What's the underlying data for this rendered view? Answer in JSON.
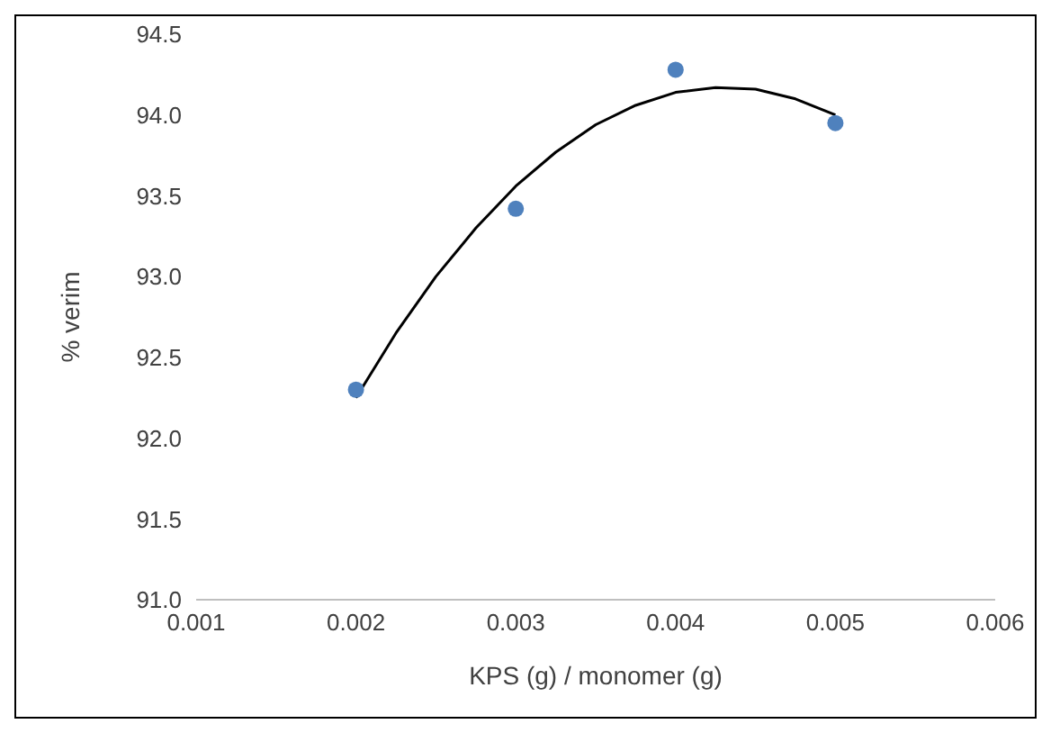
{
  "chart_data": {
    "type": "scatter",
    "xlabel": "KPS (g) / monomer  (g)",
    "ylabel": "% verim",
    "xlim": [
      0.001,
      0.006
    ],
    "xticks": [
      0.001,
      0.002,
      0.003,
      0.004,
      0.005,
      0.006
    ],
    "ylim": [
      91,
      94.5
    ],
    "yticks": [
      {
        "value": 91,
        "label": "91.0"
      },
      {
        "value": 91.5,
        "label": "91.5"
      },
      {
        "value": 92,
        "label": "92.0"
      },
      {
        "value": 92.5,
        "label": "92.5"
      },
      {
        "value": 93,
        "label": "93.0"
      },
      {
        "value": 93.5,
        "label": "93.5"
      },
      {
        "value": 94,
        "label": "94.0"
      },
      {
        "value": 94.5,
        "label": "94.5"
      }
    ],
    "grid": false,
    "legend": false,
    "marker": "circle",
    "series": [
      {
        "color": "#4f81bd",
        "x": [
          0.002,
          0.003,
          0.004,
          0.005
        ],
        "values": [
          92.3,
          93.42,
          94.28,
          93.95
        ]
      },
      {
        "type": "line",
        "color": "#000000",
        "line_style": "solid",
        "marker": "none",
        "x": [
          0.002,
          0.00225,
          0.0025,
          0.00275,
          0.003,
          0.00325,
          0.0035,
          0.00375,
          0.004,
          0.00425,
          0.0045,
          0.00475,
          0.005
        ],
        "values": [
          92.25,
          92.65,
          93.0,
          93.3,
          93.56,
          93.77,
          93.94,
          94.06,
          94.14,
          94.17,
          94.16,
          94.1,
          94.0
        ]
      }
    ]
  }
}
